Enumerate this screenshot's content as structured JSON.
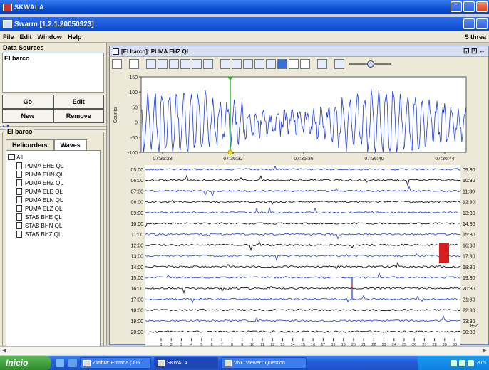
{
  "vnc": {
    "title": "SKWALA"
  },
  "swarm": {
    "title": "Swarm [1.2.1.20050923]",
    "menu": [
      "File",
      "Edit",
      "Window",
      "Help"
    ],
    "threads_label": "5 threa"
  },
  "data_sources": {
    "title": "Data Sources",
    "items": [
      "El barco"
    ],
    "buttons": {
      "go": "Go",
      "edit": "Edit",
      "new": "New",
      "remove": "Remove"
    }
  },
  "group": {
    "title": "El barco",
    "tabs": [
      "Helicorders",
      "Waves"
    ],
    "active_tab": "Waves",
    "root": "All",
    "channels": [
      "PUMA EHE QL",
      "PUMA EHN QL",
      "PUMA EHZ QL",
      "PUMA ELE QL",
      "PUMA ELN QL",
      "PUMA ELZ QL",
      "STAB BHE QL",
      "STAB BHN QL",
      "STAB BHZ QL"
    ]
  },
  "wave_window": {
    "title": "[El barco]: PUMA EHZ QL",
    "controls": "◱ ◳ ←"
  },
  "chart_data": [
    {
      "type": "line",
      "title": "",
      "ylabel": "Counts",
      "xlabel": "",
      "ylim": [
        -100,
        150
      ],
      "yticks": [
        150,
        100,
        50,
        0,
        -50,
        -100
      ],
      "xticks": [
        "07:36:28",
        "07:36:32",
        "07:36:36",
        "07:36:40",
        "07:36:44"
      ],
      "cursor_time": "07:36:31",
      "series": [
        {
          "color": "#1f3dd1"
        }
      ]
    },
    {
      "type": "heatmap",
      "title": "",
      "left_labels": [
        "05:00",
        "06:00",
        "07:00",
        "08:00",
        "09:00",
        "10:00",
        "11:00",
        "12:00",
        "13:00",
        "14:00",
        "15:00",
        "16:00",
        "17:00",
        "18:00",
        "19:00",
        "20:00"
      ],
      "right_labels": [
        "09:30",
        "10:30",
        "11:30",
        "12:30",
        "13:30",
        "14:30",
        "15:30",
        "16:30",
        "17:30",
        "18:30",
        "19:30",
        "20:30",
        "21:30",
        "22:30",
        "23:30",
        "00:30"
      ],
      "right_extra": "08-2",
      "x_minutes": [
        1,
        2,
        3,
        4,
        5,
        6,
        7,
        8,
        9,
        10,
        11,
        12,
        13,
        14,
        15,
        16,
        17,
        18,
        19,
        20,
        21,
        22,
        23,
        24,
        25,
        26,
        27,
        28,
        29,
        30
      ],
      "row_colors": [
        "#1f3dd1",
        "#000000"
      ]
    }
  ],
  "taskbar": {
    "start": "Inicio",
    "tasks": [
      "Zimbra: Entrada (305...",
      "SKWALA",
      "VNC Viewer : Question"
    ],
    "clock": "20:5"
  }
}
